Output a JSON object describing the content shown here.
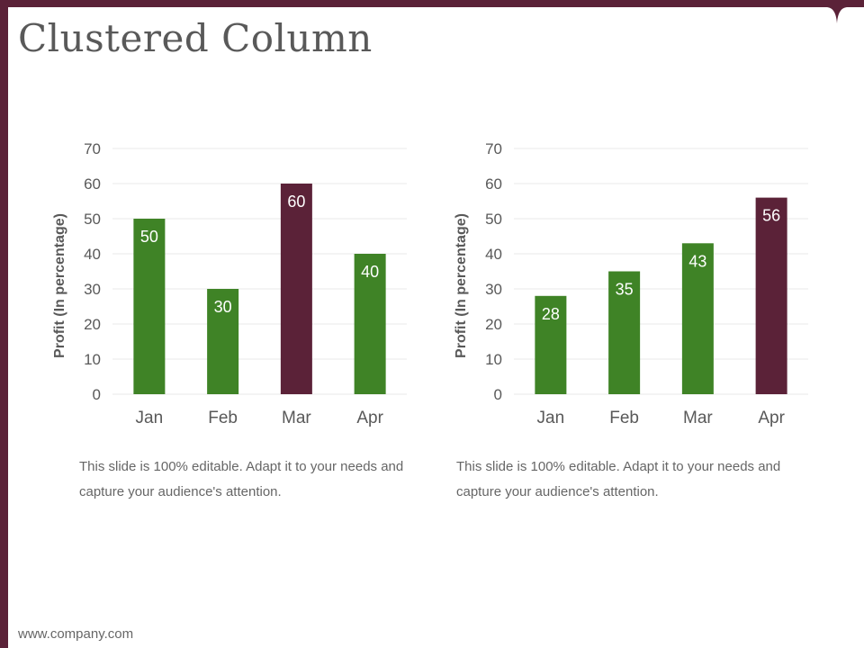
{
  "slide": {
    "title": "Clustered Column",
    "footer": "www.company.com"
  },
  "colors": {
    "accent": "#5b2238",
    "bar_green": "#3f8326",
    "bar_highlight": "#5b2238",
    "grid": "#e8e8e8",
    "axis_text": "#595959"
  },
  "descriptions": [
    "This slide is 100% editable. Adapt it to your needs and capture your audience's attention.",
    "This slide is 100% editable. Adapt it to your needs and capture your audience's attention."
  ],
  "chart_data": [
    {
      "type": "bar",
      "categories": [
        "Jan",
        "Feb",
        "Mar",
        "Apr"
      ],
      "values": [
        50,
        30,
        60,
        40
      ],
      "highlight_index": 2,
      "ylabel": "Profit  (In percentage)",
      "xlabel": "",
      "ylim": [
        0,
        70
      ],
      "yticks": [
        0,
        10,
        20,
        30,
        40,
        50,
        60,
        70
      ],
      "data_labels": true,
      "grid": true
    },
    {
      "type": "bar",
      "categories": [
        "Jan",
        "Feb",
        "Mar",
        "Apr"
      ],
      "values": [
        28,
        35,
        43,
        56
      ],
      "highlight_index": 3,
      "ylabel": "Profit  (In percentage)",
      "xlabel": "",
      "ylim": [
        0,
        70
      ],
      "yticks": [
        0,
        10,
        20,
        30,
        40,
        50,
        60,
        70
      ],
      "data_labels": true,
      "grid": true
    }
  ]
}
